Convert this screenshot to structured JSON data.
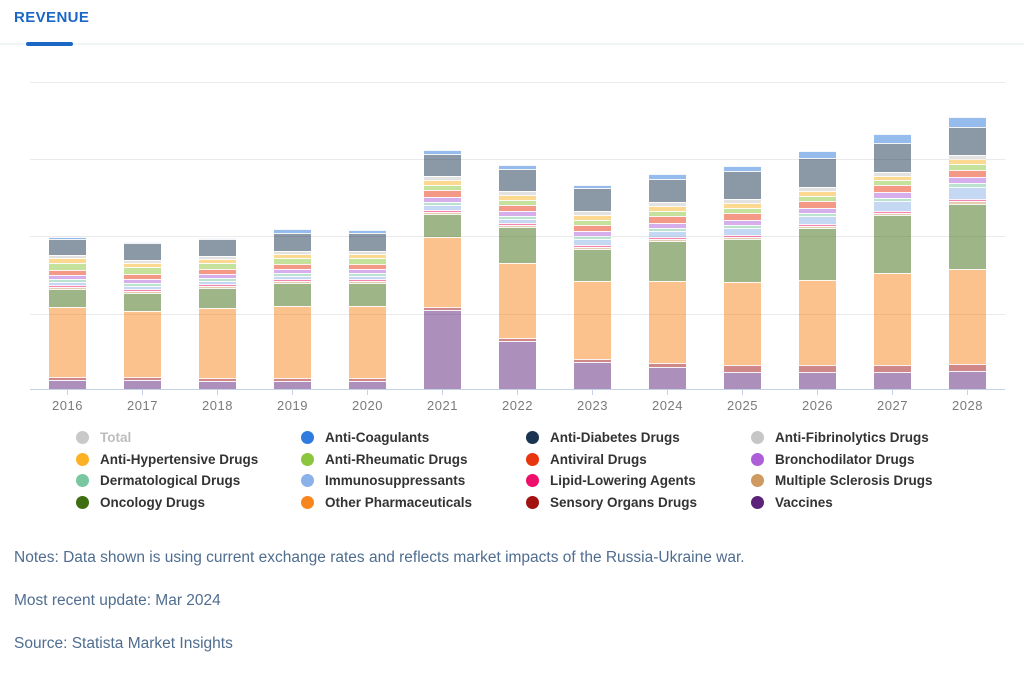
{
  "header": {
    "tab_label": "REVENUE"
  },
  "accent": {
    "tab_blue": "#1b67c6",
    "axis_line": "#c5d2e6",
    "gridline": "#eaeaea",
    "note_text": "#4f6d8f",
    "x_label_text": "#7b7b7b"
  },
  "chart_data": {
    "type": "bar",
    "stacked": true,
    "title": "Revenue",
    "xlabel": "",
    "ylabel": "",
    "y_axis_note": "y-axis unlabeled in screenshot; values are relative units (plot pixels), gridlines every 77 units, plot max 330",
    "ylim": [
      0,
      330
    ],
    "gridline_values": [
      77,
      154,
      231,
      308
    ],
    "bar_opacity": 0.5,
    "categories": [
      "2016",
      "2017",
      "2018",
      "2019",
      "2020",
      "2021",
      "2022",
      "2023",
      "2024",
      "2025",
      "2026",
      "2027",
      "2028"
    ],
    "series": [
      {
        "name": "Vaccines",
        "color": "#5C2178",
        "values": [
          9,
          9,
          8,
          8,
          8,
          79,
          48,
          27,
          22,
          17,
          17,
          17,
          18
        ]
      },
      {
        "name": "Sensory Organs Drugs",
        "color": "#A31111",
        "values": [
          3,
          3,
          3,
          3,
          3,
          3,
          3,
          3,
          4,
          7,
          7,
          7,
          7
        ]
      },
      {
        "name": "Other Pharmaceuticals",
        "color": "#F8861E",
        "values": [
          70,
          66,
          70,
          72,
          72,
          70,
          75,
          78,
          82,
          83,
          85,
          92,
          95
        ]
      },
      {
        "name": "Oncology Drugs",
        "color": "#3F6D12",
        "values": [
          18,
          18,
          20,
          23,
          23,
          23,
          36,
          32,
          40,
          43,
          52,
          58,
          65
        ]
      },
      {
        "name": "Multiple Sclerosis Drugs",
        "color": "#CE9A62",
        "values": [
          2,
          2,
          2,
          2,
          2,
          2,
          2,
          2,
          2,
          2,
          2,
          2,
          3
        ]
      },
      {
        "name": "Lipid-Lowering Agents",
        "color": "#ED0F69",
        "values": [
          2,
          2,
          2,
          2,
          2,
          2,
          2,
          2,
          2,
          2,
          2,
          2,
          2
        ]
      },
      {
        "name": "Immunosuppressants",
        "color": "#8AB1E8",
        "values": [
          3,
          3,
          3,
          3,
          3,
          5,
          4,
          6,
          6,
          7,
          8,
          10,
          12
        ]
      },
      {
        "name": "Dermatological Drugs",
        "color": "#78C7A0",
        "values": [
          3,
          3,
          3,
          3,
          3,
          3,
          3,
          3,
          3,
          3,
          3,
          3,
          4
        ]
      },
      {
        "name": "Bronchodilator Drugs",
        "color": "#AE5FD8",
        "values": [
          4,
          4,
          4,
          4,
          4,
          5,
          5,
          5,
          5,
          5,
          5,
          6,
          6
        ]
      },
      {
        "name": "Antiviral Drugs",
        "color": "#E8350F",
        "values": [
          5,
          5,
          5,
          5,
          5,
          7,
          6,
          6,
          7,
          7,
          7,
          7,
          7
        ]
      },
      {
        "name": "Anti-Rheumatic Drugs",
        "color": "#8CC63E",
        "values": [
          7,
          7,
          6,
          6,
          6,
          5,
          5,
          5,
          5,
          5,
          5,
          5,
          6
        ]
      },
      {
        "name": "Anti-Hypertensive Drugs",
        "color": "#FCB224",
        "values": [
          5,
          4,
          4,
          4,
          4,
          5,
          5,
          5,
          5,
          5,
          5,
          4,
          5
        ]
      },
      {
        "name": "Anti-Fibrinolytics Drugs",
        "color": "#C6C6C6",
        "values": [
          3,
          3,
          3,
          3,
          3,
          4,
          4,
          4,
          4,
          4,
          4,
          4,
          4
        ]
      },
      {
        "name": "Anti-Diabetes Drugs",
        "color": "#1A3350",
        "values": [
          16,
          17,
          17,
          18,
          18,
          22,
          22,
          23,
          23,
          28,
          29,
          29,
          28
        ]
      },
      {
        "name": "Anti-Coagulants",
        "color": "#2F7CDE",
        "values": [
          2,
          1,
          1,
          4,
          3,
          4,
          4,
          3,
          5,
          5,
          7,
          9,
          10
        ]
      }
    ],
    "legend": [
      {
        "label": "Total",
        "color": "#C9C9C9",
        "active": false
      },
      {
        "label": "Anti-Coagulants",
        "color": "#2F7CDE",
        "active": true
      },
      {
        "label": "Anti-Diabetes Drugs",
        "color": "#1A3350",
        "active": true
      },
      {
        "label": "Anti-Fibrinolytics Drugs",
        "color": "#C6C6C6",
        "active": true
      },
      {
        "label": "Anti-Hypertensive Drugs",
        "color": "#FCB224",
        "active": true
      },
      {
        "label": "Anti-Rheumatic Drugs",
        "color": "#8CC63E",
        "active": true
      },
      {
        "label": "Antiviral Drugs",
        "color": "#E8350F",
        "active": true
      },
      {
        "label": "Bronchodilator Drugs",
        "color": "#AE5FD8",
        "active": true
      },
      {
        "label": "Dermatological Drugs",
        "color": "#78C7A0",
        "active": true
      },
      {
        "label": "Immunosuppressants",
        "color": "#8AB1E8",
        "active": true
      },
      {
        "label": "Lipid-Lowering Agents",
        "color": "#ED0F69",
        "active": true
      },
      {
        "label": "Multiple Sclerosis Drugs",
        "color": "#CE9A62",
        "active": true
      },
      {
        "label": "Oncology Drugs",
        "color": "#3F6D12",
        "active": true
      },
      {
        "label": "Other Pharmaceuticals",
        "color": "#F8861E",
        "active": true
      },
      {
        "label": "Sensory Organs Drugs",
        "color": "#A31111",
        "active": true
      },
      {
        "label": "Vaccines",
        "color": "#5C2178",
        "active": true
      }
    ],
    "legend_position": "bottom",
    "grid": true
  },
  "notes": {
    "notes_line": "Notes: Data shown is using current exchange rates and reflects market impacts of the Russia-Ukraine war.",
    "update_line": "Most recent update: Mar 2024",
    "source_line": "Source: Statista Market Insights"
  }
}
